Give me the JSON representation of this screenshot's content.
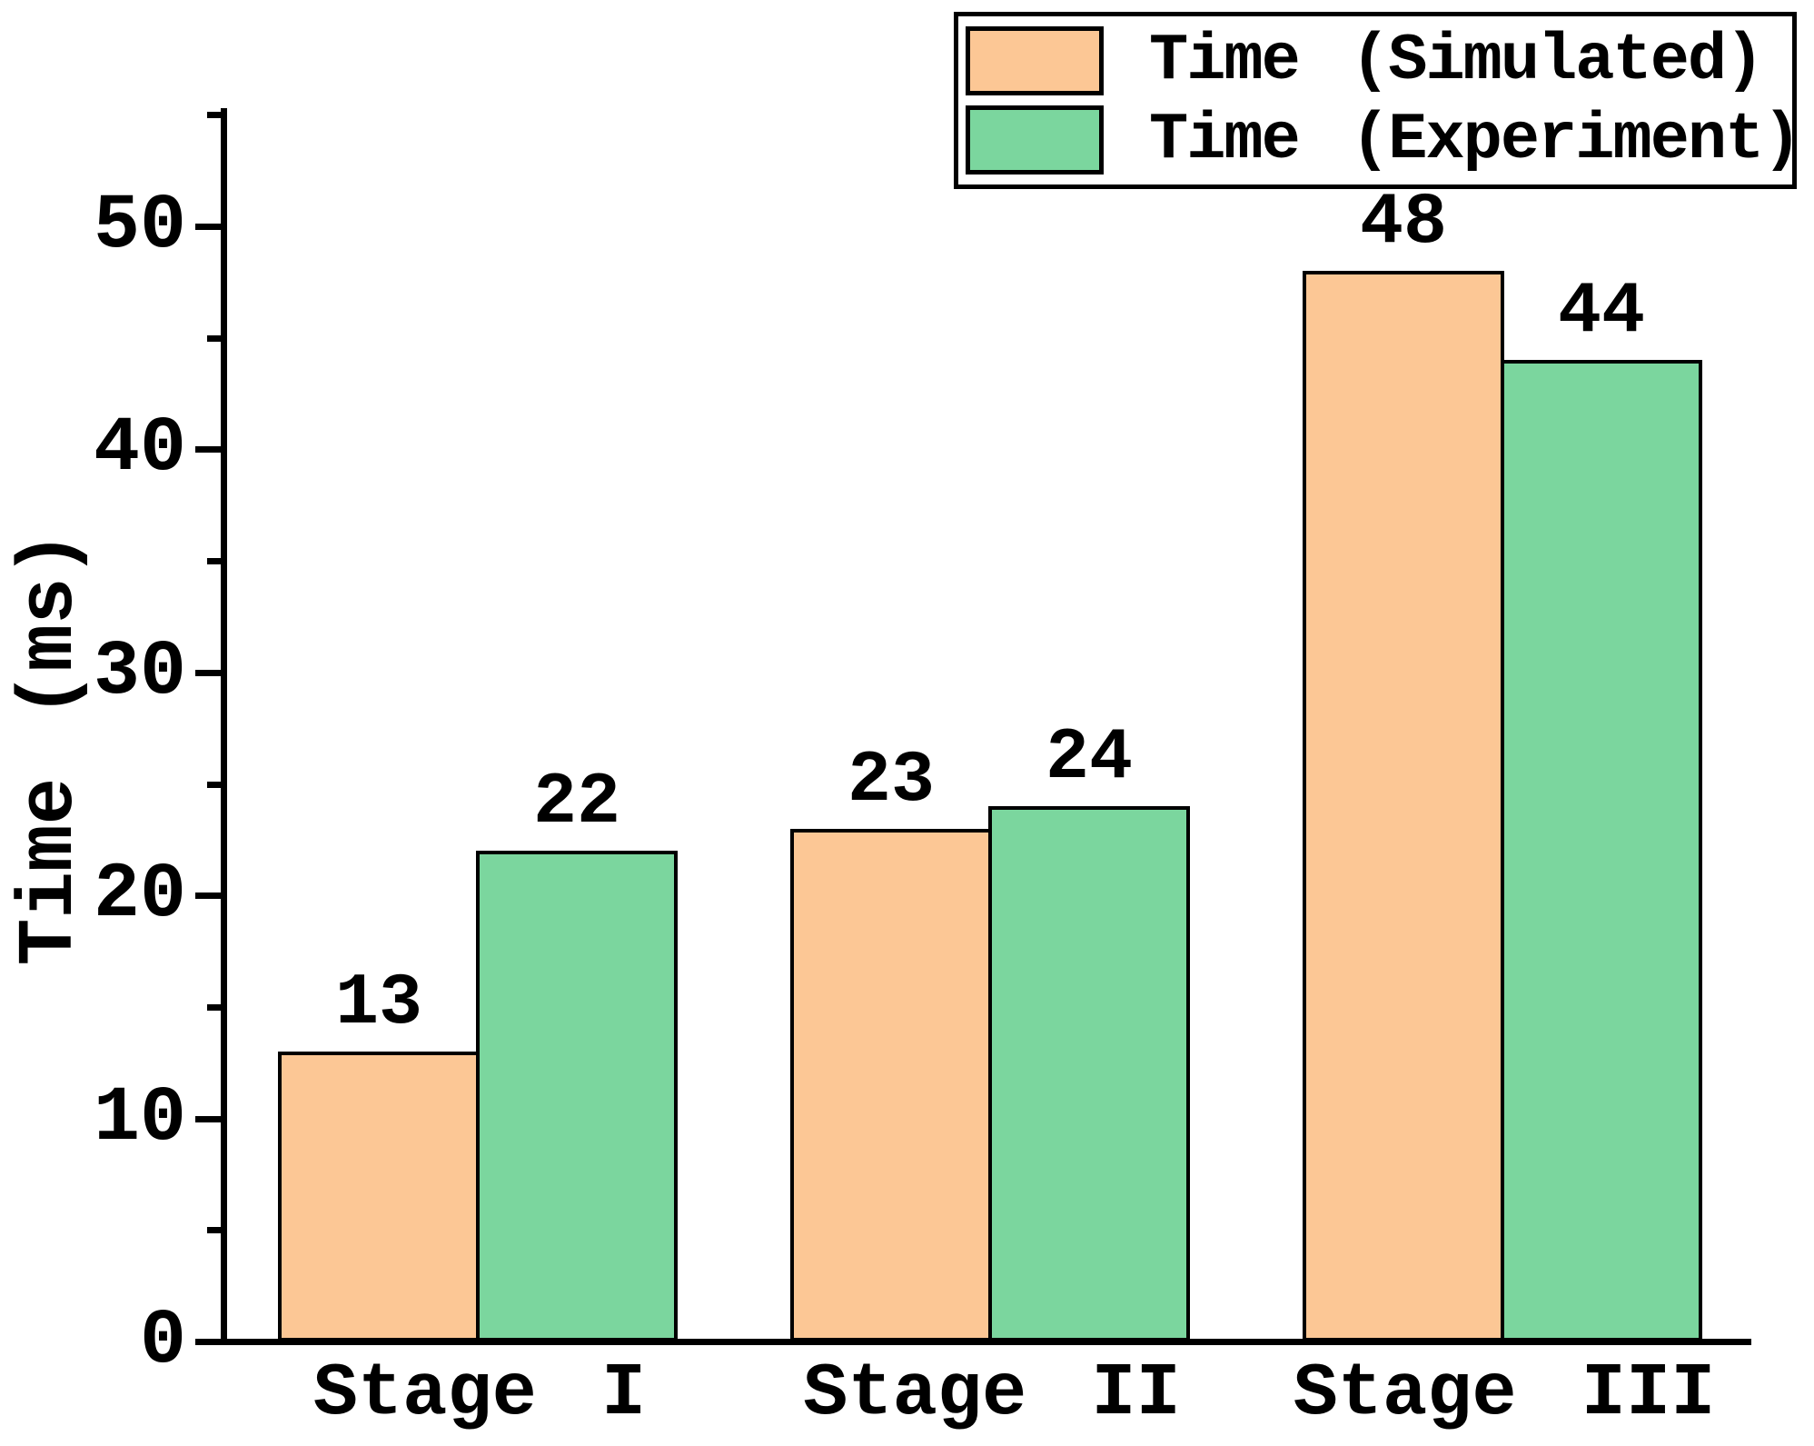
{
  "chart_data": {
    "type": "bar",
    "title": "",
    "categories": [
      "Stage I",
      "Stage II",
      "Stage III"
    ],
    "series": [
      {
        "name": "Time (Simulated)",
        "color": "#FCC795",
        "values": [
          13,
          23,
          48
        ]
      },
      {
        "name": "Time (Experiment)",
        "color": "#7BD69E",
        "values": [
          22,
          24,
          44
        ]
      }
    ],
    "xlabel": "",
    "ylabel": "Time (ms)",
    "ylim": [
      0,
      55.3
    ],
    "yticks_major": [
      0,
      10,
      20,
      30,
      40,
      50
    ],
    "yticks_minor": [
      5,
      15,
      25,
      35,
      45,
      55
    ],
    "bar_value_labels": true,
    "grid": false,
    "legend_position": "top-right",
    "bar_edge_color": "#000000",
    "axis_color": "#000000",
    "background_color": "#FFFFFF"
  }
}
